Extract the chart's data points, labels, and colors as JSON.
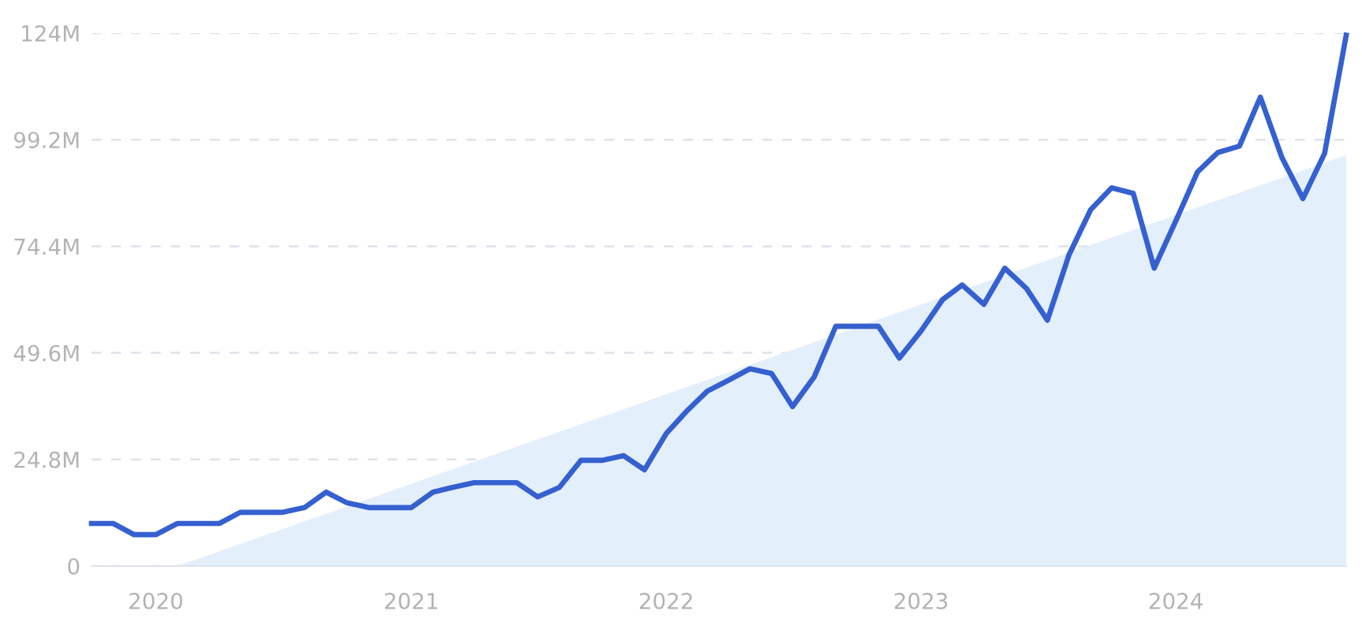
{
  "chart_data": {
    "type": "line",
    "x": [
      "2019-10",
      "2019-11",
      "2019-12",
      "2020-01",
      "2020-02",
      "2020-03",
      "2020-04",
      "2020-05",
      "2020-06",
      "2020-07",
      "2020-08",
      "2020-09",
      "2020-10",
      "2020-11",
      "2020-12",
      "2021-01",
      "2021-02",
      "2021-03",
      "2021-04",
      "2021-05",
      "2021-06",
      "2021-07",
      "2021-08",
      "2021-09",
      "2021-10",
      "2021-11",
      "2021-12",
      "2022-01",
      "2022-02",
      "2022-03",
      "2022-04",
      "2022-05",
      "2022-06",
      "2022-07",
      "2022-08",
      "2022-09",
      "2022-10",
      "2022-11",
      "2022-12",
      "2023-01",
      "2023-02",
      "2023-03",
      "2023-04",
      "2023-05",
      "2023-06",
      "2023-07",
      "2023-08",
      "2023-09",
      "2023-10",
      "2023-11",
      "2023-12",
      "2024-01",
      "2024-02",
      "2024-03",
      "2024-04",
      "2024-05",
      "2024-06",
      "2024-07",
      "2024-08",
      "2024-09"
    ],
    "series": [
      {
        "type": "area",
        "color": "#e4effc",
        "x": [
          "2020-02",
          "2024-09"
        ],
        "values": [
          0,
          95.6
        ]
      },
      {
        "color": "#3560d0",
        "values": [
          9.9,
          9.9,
          7.3,
          7.3,
          9.9,
          9.9,
          9.9,
          12.5,
          12.5,
          12.5,
          13.6,
          17.2,
          14.7,
          13.6,
          13.6,
          13.6,
          17.2,
          18.3,
          19.4,
          19.4,
          19.4,
          16.1,
          18.3,
          24.6,
          24.6,
          25.7,
          22.4,
          30.8,
          36.3,
          40.7,
          43.3,
          45.9,
          44.8,
          37.1,
          44.0,
          55.8,
          55.8,
          55.8,
          48.4,
          54.7,
          62.0,
          65.4,
          60.9,
          69.3,
          64.6,
          57.2,
          72.4,
          82.9,
          88.0,
          86.7,
          69.3,
          80.3,
          91.7,
          96.2,
          97.7,
          109.1,
          95.0,
          85.5,
          96.0,
          123.5
        ]
      }
    ],
    "xlim": [
      "2019-10",
      "2024-09"
    ],
    "xticks": [
      {
        "value": "2020-01",
        "label": "2020"
      },
      {
        "value": "2021-01",
        "label": "2021"
      },
      {
        "value": "2022-01",
        "label": "2022"
      },
      {
        "value": "2023-01",
        "label": "2023"
      },
      {
        "value": "2024-01",
        "label": "2024"
      }
    ],
    "ylim": [
      0,
      124
    ],
    "yticks": [
      0,
      {
        "value": 24.8,
        "label": "24.8M"
      },
      {
        "value": 49.6,
        "label": "49.6M"
      },
      {
        "value": 74.4,
        "label": "74.4M"
      },
      {
        "value": 99.2,
        "label": "99.2M"
      },
      {
        "value": 124,
        "label": "124M"
      }
    ],
    "grid": "y",
    "marker": "none",
    "line_style": "solid",
    "legend": false
  }
}
